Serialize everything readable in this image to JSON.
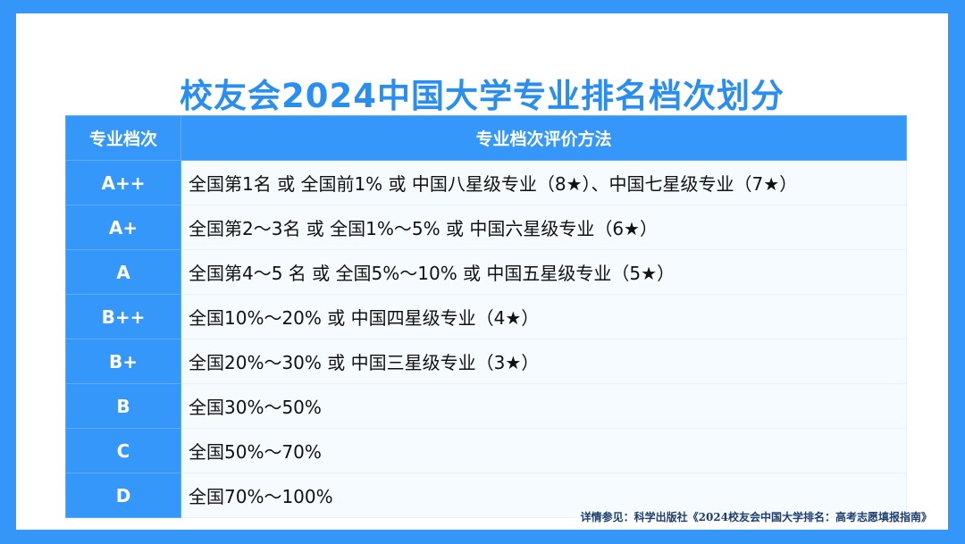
{
  "title": "校友会2024中国大学专业排名档次划分",
  "table": {
    "headers": [
      "专业档次",
      "专业档次评价方法"
    ],
    "rows": [
      {
        "grade": "A++",
        "method": "全国第1名 或 全国前1% 或 中国八星级专业（8★）、中国七星级专业（7★）"
      },
      {
        "grade": "A+",
        "method": "全国第2～3名 或 全国1%～5% 或 中国六星级专业（6★）"
      },
      {
        "grade": "A",
        "method": "全国第4～5 名 或 全国5%～10% 或 中国五星级专业（5★）"
      },
      {
        "grade": "B++",
        "method": "全国10%～20% 或 中国四星级专业（4★）"
      },
      {
        "grade": "B+",
        "method": "全国20%～30% 或 中国三星级专业（3★）"
      },
      {
        "grade": "B",
        "method": "全国30%～50%"
      },
      {
        "grade": "C",
        "method": "全国50%～70%"
      },
      {
        "grade": "D",
        "method": "全国70%～100%"
      }
    ]
  },
  "source": "详情参见：科学出版社《2024校友会中国大学排名：高考志愿填报指南》",
  "colors": {
    "accent": "#3597f9",
    "title": "#2a8ef0"
  }
}
